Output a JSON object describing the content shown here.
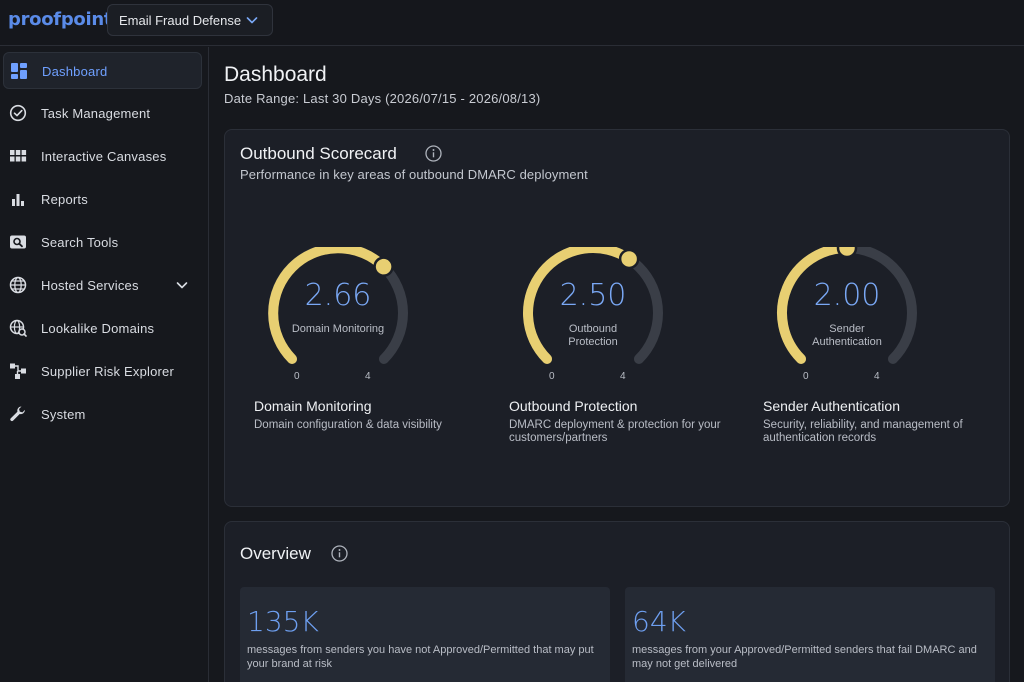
{
  "app": {
    "logo": "proofpoint",
    "product": "Email Fraud Defense"
  },
  "sidebar": {
    "items": [
      {
        "label": "Dashboard",
        "icon": "dashboard-icon",
        "active": true
      },
      {
        "label": "Task Management",
        "icon": "check-circle-icon"
      },
      {
        "label": "Interactive Canvases",
        "icon": "grid-icon"
      },
      {
        "label": "Reports",
        "icon": "bar-chart-icon"
      },
      {
        "label": "Search Tools",
        "icon": "search-icon"
      },
      {
        "label": "Hosted Services",
        "icon": "globe-icon",
        "expandable": true
      },
      {
        "label": "Lookalike Domains",
        "icon": "globe-search-icon"
      },
      {
        "label": "Supplier Risk Explorer",
        "icon": "network-icon"
      },
      {
        "label": "System",
        "icon": "wrench-icon"
      }
    ]
  },
  "page": {
    "title": "Dashboard",
    "date_range": "Date Range: Last 30 Days (2026/07/15 - 2026/08/13)"
  },
  "scorecard": {
    "title": "Outbound Scorecard",
    "subtitle": "Performance in key areas of outbound DMARC deployment",
    "max": 4,
    "gauges": [
      {
        "value": "2.66",
        "score": 2.66,
        "label": "Domain Monitoring",
        "min_label": "0",
        "max_label": "4",
        "title": "Domain Monitoring",
        "desc": "Domain configuration & data visibility"
      },
      {
        "value": "2.50",
        "score": 2.5,
        "label": "Outbound Protection",
        "min_label": "0",
        "max_label": "4",
        "title": "Outbound Protection",
        "desc": "DMARC deployment & protection for your customers/partners"
      },
      {
        "value": "2.00",
        "score": 2.0,
        "label": "Sender Authentication",
        "min_label": "0",
        "max_label": "4",
        "title": "Sender Authentication",
        "desc": "Security, reliability, and management of authentication records"
      }
    ],
    "colors": {
      "fill": "#e8cf72",
      "track": "#3a3e47"
    }
  },
  "overview": {
    "title": "Overview",
    "stats": [
      {
        "value": "135K",
        "desc": "messages from senders you have not Approved/Permitted that may put your brand at risk"
      },
      {
        "value": "64K",
        "desc": "messages from your Approved/Permitted senders that fail DMARC and may not get delivered"
      }
    ]
  }
}
